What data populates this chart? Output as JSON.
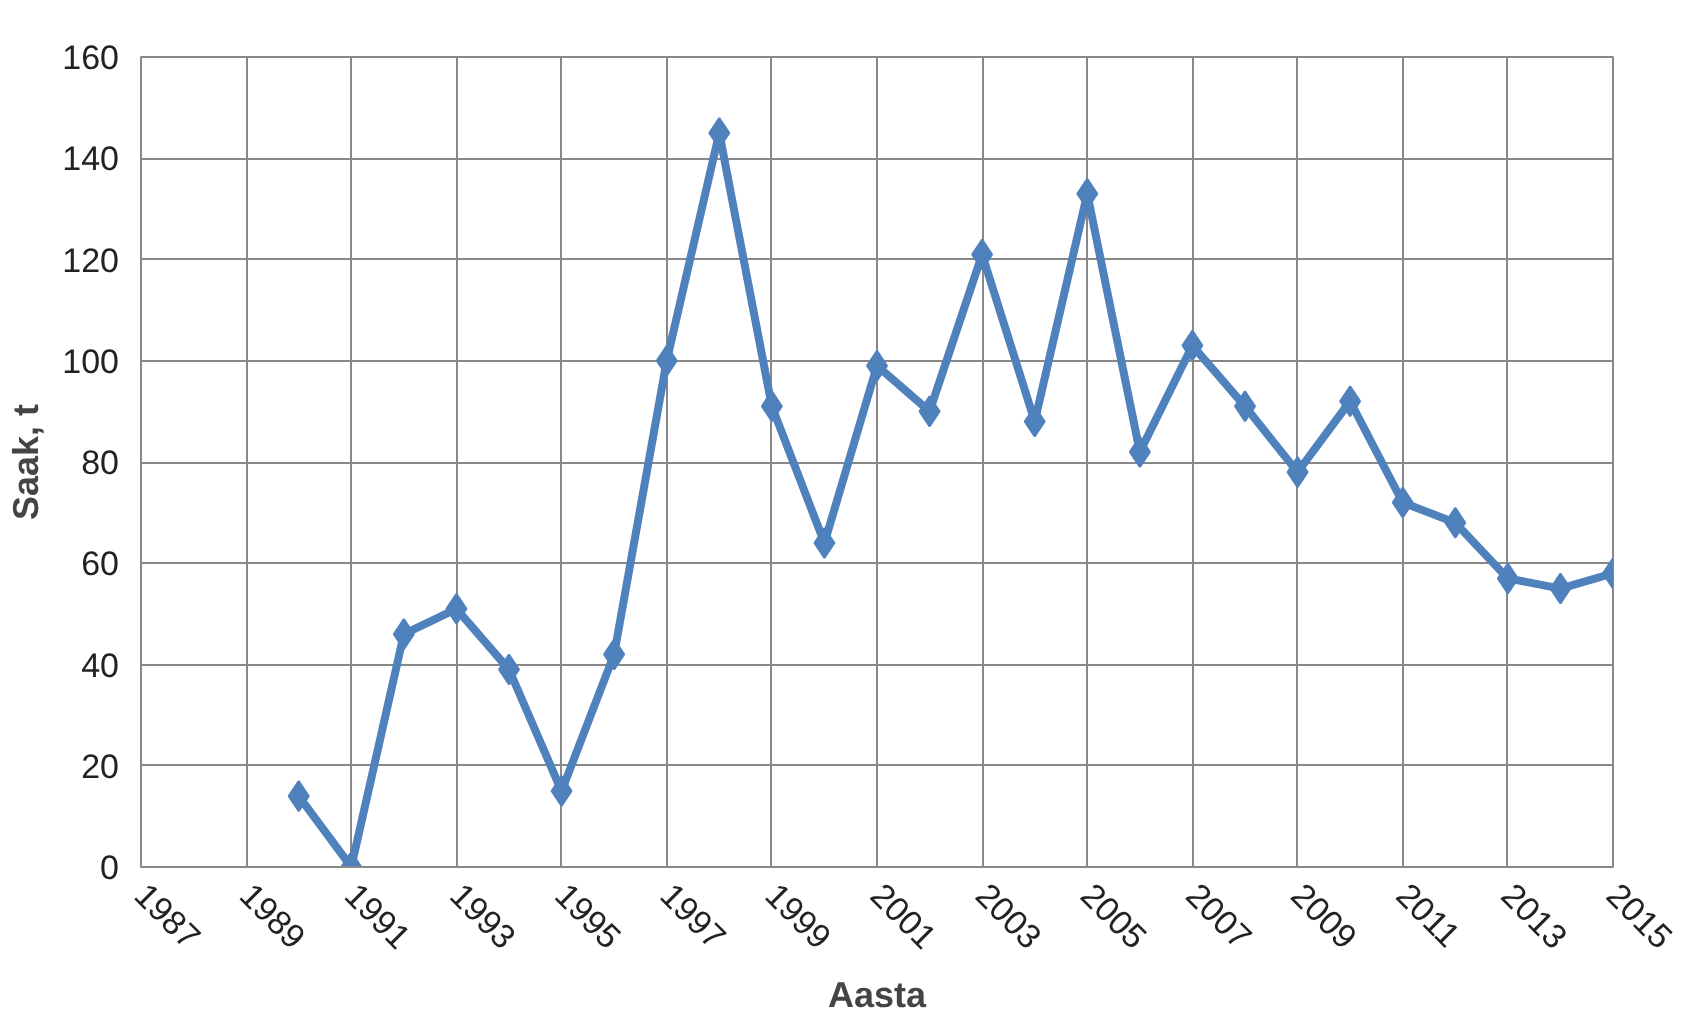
{
  "chart_data": {
    "type": "line",
    "xlabel": "Aasta",
    "ylabel": "Saak, t",
    "x": [
      1990,
      1991,
      1992,
      1993,
      1994,
      1995,
      1996,
      1997,
      1998,
      1999,
      2000,
      2001,
      2002,
      2003,
      2004,
      2005,
      2006,
      2007,
      2008,
      2009,
      2010,
      2011,
      2012,
      2013,
      2014,
      2015
    ],
    "series": [
      {
        "color": "#4f81bd",
        "values": [
          14,
          0,
          46,
          51,
          39,
          15,
          42,
          100,
          145,
          91,
          64,
          99,
          90,
          121,
          88,
          133,
          82,
          103,
          91,
          78,
          92,
          72,
          68,
          57,
          55,
          58
        ]
      }
    ],
    "xlim": [
      1987,
      2015
    ],
    "xticks": [
      1987,
      1989,
      1991,
      1993,
      1995,
      1997,
      1999,
      2001,
      2003,
      2005,
      2007,
      2009,
      2011,
      2013,
      2015
    ],
    "ylim": [
      0,
      160
    ],
    "yticks": [
      0,
      20,
      40,
      60,
      80,
      100,
      120,
      140,
      160
    ],
    "grid": true,
    "marker": "diamond",
    "line_style": "solid"
  }
}
